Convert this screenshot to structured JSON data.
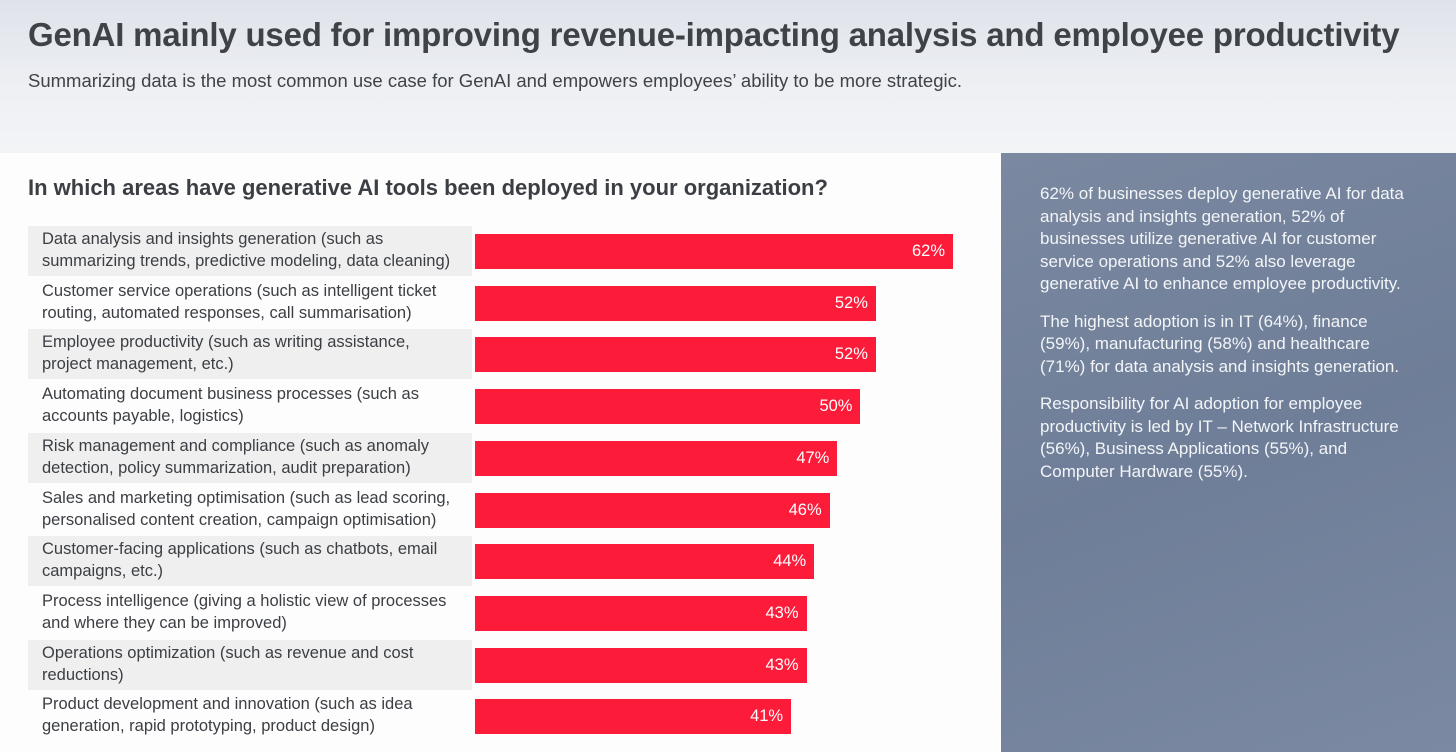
{
  "header": {
    "title": "GenAI mainly used for improving revenue-impacting analysis and employee productivity",
    "subtitle": "Summarizing data is the most common use case for GenAI and empowers employees’ ability to be more strategic."
  },
  "chart_data": {
    "type": "bar",
    "orientation": "horizontal",
    "title": "In which areas have generative AI tools been deployed in your organization?",
    "categories": [
      "Data analysis and insights generation (such as summarizing trends, predictive modeling, data cleaning)",
      "Customer service operations (such as intelligent ticket routing, automated responses, call summarisation)",
      "Employee productivity (such as writing assistance, project management, etc.)",
      "Automating document business processes (such as accounts payable, logistics)",
      "Risk management and compliance (such as anomaly detection, policy summarization, audit preparation)",
      "Sales and marketing optimisation (such as lead scoring, personalised content creation, campaign optimisation)",
      "Customer-facing applications (such as chatbots, email campaigns, etc.)",
      "Process intelligence (giving a holistic view of processes and where they can be improved)",
      "Operations optimization (such as revenue and cost reductions)",
      "Product development and innovation (such as idea generation, rapid prototyping, product design)"
    ],
    "values": [
      62,
      52,
      52,
      50,
      47,
      46,
      44,
      43,
      43,
      41
    ],
    "labels": [
      "62%",
      "52%",
      "52%",
      "50%",
      "47%",
      "46%",
      "44%",
      "43%",
      "43%",
      "41%"
    ],
    "unit": "%",
    "xlim": [
      0,
      62
    ],
    "bar_color": "#fc1c3a"
  },
  "panel": {
    "paragraphs": [
      "62% of businesses deploy generative AI for data analysis and insights generation, 52% of businesses utilize generative AI for customer service operations and 52% also leverage generative AI to enhance employee productivity.",
      "The highest adoption is in IT (64%), finance (59%),  manufacturing (58%) and healthcare (71%) for data analysis and insights generation.",
      "Responsibility for AI adoption for employee productivity is led by IT – Network Infrastructure (56%), Business Applications (55%), and Computer Hardware (55%)."
    ]
  }
}
